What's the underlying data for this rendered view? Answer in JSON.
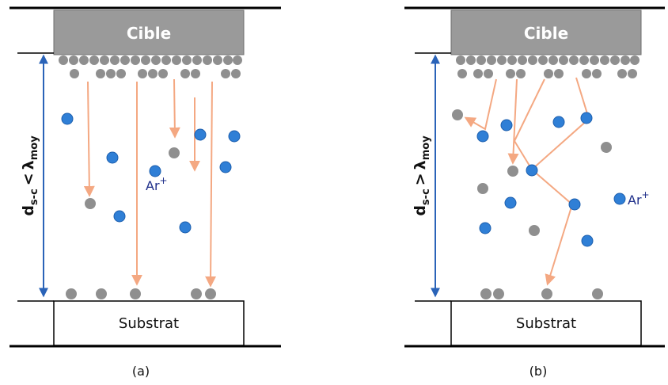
{
  "colors": {
    "target_fill": "#9a9a9a",
    "atom": "#8f8f8f",
    "ion": "#2f7fd6",
    "trajectory": "#f4a882",
    "dimension": "#2a63b8",
    "line": "#000000"
  },
  "panels": [
    {
      "id": "a",
      "target_label": "Cible",
      "substrate_label": "Substrat",
      "caption": "(a)",
      "distance_label": {
        "main": "d",
        "sub": "s-c",
        "rel": "<",
        "sym": "λ",
        "sym_sub": "moy"
      },
      "ion_label": {
        "main": "Ar",
        "sup": "+"
      }
    },
    {
      "id": "b",
      "target_label": "Cible",
      "substrate_label": "Substrat",
      "caption": "(b)",
      "distance_label": {
        "main": "d",
        "sub": "s-c",
        "rel": ">",
        "sym": "λ",
        "sym_sub": "moy"
      },
      "ion_label": {
        "main": "Ar",
        "sup": "+"
      }
    }
  ]
}
